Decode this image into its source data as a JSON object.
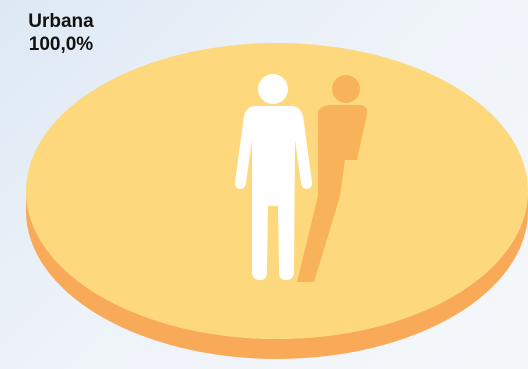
{
  "chart_data": {
    "type": "pie",
    "categories": [
      "Urbana"
    ],
    "values": [
      100.0
    ],
    "data_labels": [
      "100,0%"
    ],
    "style": "3d-ellipse",
    "colors": {
      "slice_top": "#fdd87c",
      "slice_side": "#f9aa58",
      "figure_main": "#ffffff",
      "figure_shadow": "#f7b25a"
    }
  },
  "icon": "person-icon"
}
